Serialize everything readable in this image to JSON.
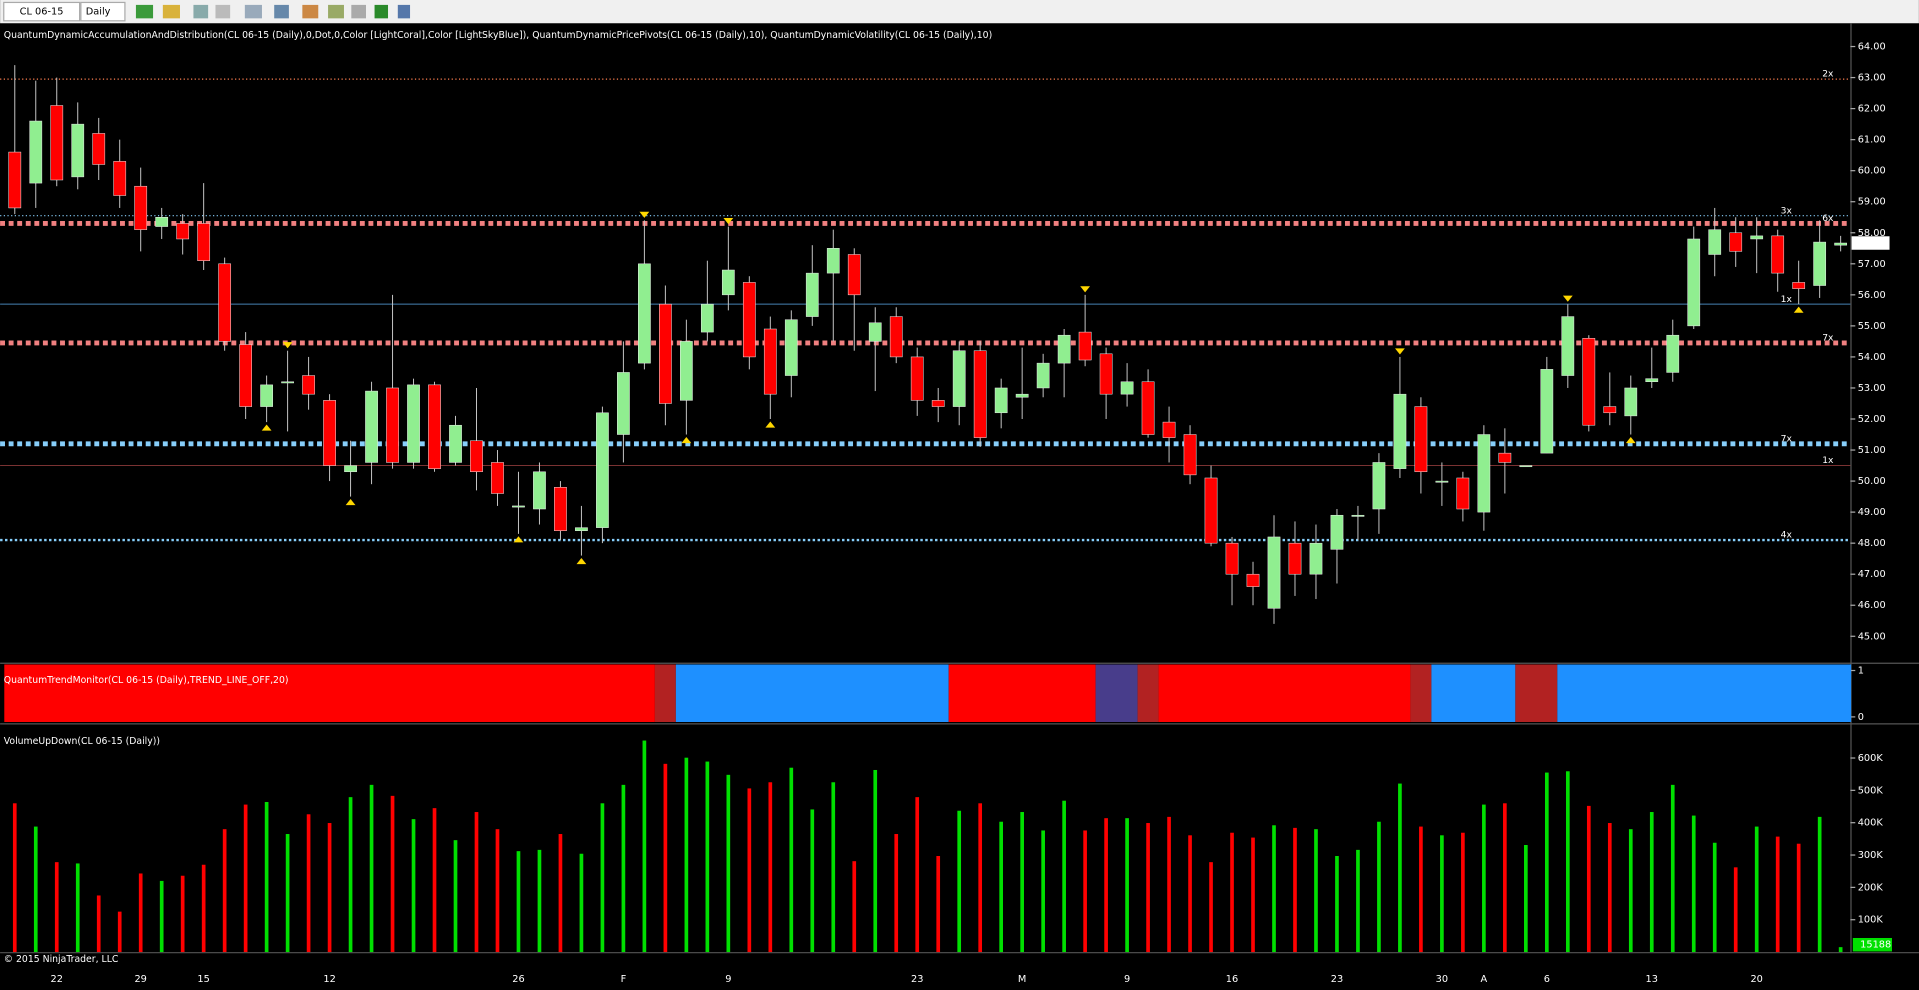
{
  "toolbar": {
    "instrument": "CL 06-15",
    "period": "Daily"
  },
  "copyright": "© 2015 NinjaTrader, LLC",
  "chart_data": [
    {
      "type": "candlestick",
      "title": "QuantumDynamicAccumulationAndDistribution(CL 06-15 (Daily),0,Dot,0,Color [LightCoral],Color [LightSkyBlue]), QuantumDynamicPricePivots(CL 06-15 (Daily),10), QuantumDynamicVolatility(CL 06-15 (Daily),10)",
      "categories": [
        null,
        null,
        "22",
        null,
        null,
        null,
        "29",
        null,
        null,
        "15",
        null,
        null,
        null,
        null,
        null,
        "12",
        null,
        null,
        null,
        null,
        null,
        null,
        null,
        null,
        "26",
        null,
        null,
        null,
        null,
        "F",
        null,
        null,
        null,
        null,
        "9",
        null,
        null,
        null,
        null,
        null,
        null,
        null,
        null,
        "23",
        null,
        null,
        null,
        null,
        "M",
        null,
        null,
        null,
        null,
        "9",
        null,
        null,
        null,
        null,
        "16",
        null,
        null,
        null,
        null,
        "23",
        null,
        null,
        null,
        null,
        "30",
        null,
        "A",
        null,
        null,
        "6",
        null,
        null,
        null,
        null,
        "13",
        null,
        null,
        null,
        null,
        "20",
        null,
        null,
        null,
        null
      ],
      "open": [
        60.6,
        59.6,
        62.1,
        59.8,
        61.2,
        60.3,
        59.5,
        58.2,
        58.3,
        58.3,
        57.0,
        54.4,
        52.4,
        53.2,
        53.4,
        52.6,
        50.3,
        50.6,
        53,
        50.6,
        53.1,
        50.6,
        51.3,
        50.6,
        49.2,
        49.1,
        49.8,
        48.4,
        48.5,
        51.5,
        53.8,
        55.7,
        52.6,
        54.8,
        56,
        56.4,
        54.9,
        53.4,
        55.3,
        56.7,
        57.3,
        54.5,
        55.3,
        54,
        52.6,
        52.4,
        54.2,
        52.2,
        52.7,
        53,
        53.8,
        54.8,
        54.1,
        52.8,
        53.2,
        51.9,
        51.5,
        50.1,
        48,
        47,
        45.9,
        48,
        47,
        47.8,
        48.9,
        49.1,
        50.4,
        52.4,
        50,
        50.1,
        49,
        50.9,
        50.5,
        50.9,
        53.4,
        54.6,
        52.4,
        52.1,
        53.2,
        53.5,
        55,
        57.3,
        58,
        57.8,
        57.9,
        56.4,
        56.3,
        57.6
      ],
      "high": [
        63.4,
        62.9,
        63,
        62.2,
        61.7,
        61,
        60.1,
        58.8,
        58.6,
        59.6,
        57.2,
        54.8,
        53.4,
        54.2,
        54,
        52.8,
        51.3,
        53.2,
        56,
        53.3,
        53.2,
        52.1,
        53,
        51,
        50.3,
        50.6,
        50,
        49.2,
        52.4,
        54.5,
        58.4,
        56.3,
        55.2,
        57.1,
        58.2,
        56.6,
        55.3,
        55.5,
        57.6,
        58.1,
        57.5,
        55.6,
        55.6,
        54.3,
        53,
        54.5,
        54.5,
        53.3,
        54.3,
        54.1,
        54.9,
        56,
        54.3,
        53.8,
        53.6,
        52.4,
        51.8,
        50.5,
        48.2,
        47.4,
        48.9,
        48.7,
        48.6,
        49.1,
        49.2,
        50.9,
        54,
        52.7,
        50.6,
        50.3,
        51.8,
        51.7,
        50.5,
        54,
        55.7,
        54.7,
        53.5,
        53.4,
        54.3,
        55.2,
        58.2,
        58.8,
        58.5,
        58.5,
        58.1,
        57.1,
        58.4,
        57.9
      ],
      "low": [
        58.6,
        58.8,
        59.5,
        59.4,
        59.7,
        58.8,
        57.4,
        57.8,
        57.3,
        56.8,
        54.2,
        52,
        51.9,
        51.6,
        52.3,
        50,
        49.5,
        49.9,
        50.4,
        50.4,
        50.3,
        50.5,
        49.7,
        49.2,
        48.3,
        48.6,
        48.1,
        47.6,
        48,
        50.6,
        53.6,
        51.8,
        51.5,
        54.5,
        55.5,
        53.6,
        52,
        52.7,
        55,
        54.5,
        54.2,
        52.9,
        53.8,
        52.1,
        51.9,
        51.8,
        51.1,
        51.7,
        52,
        52.7,
        52.7,
        53.7,
        52,
        52.4,
        51.4,
        50.6,
        49.9,
        47.9,
        46,
        46,
        45.4,
        46.3,
        46.2,
        46.7,
        48.1,
        48.3,
        50.1,
        49.6,
        49.2,
        48.7,
        48.4,
        49.6,
        50.5,
        50.9,
        53,
        51.6,
        51.8,
        51.5,
        53,
        53.2,
        54.9,
        56.6,
        56.9,
        56.7,
        56.1,
        55.7,
        55.9,
        57.4
      ],
      "close": [
        58.8,
        61.6,
        59.7,
        61.5,
        60.2,
        59.2,
        58.1,
        58.5,
        57.8,
        57.1,
        54.5,
        52.4,
        53.1,
        53.2,
        52.8,
        50.5,
        50.5,
        52.9,
        50.6,
        53.1,
        50.4,
        51.8,
        50.3,
        49.6,
        49.2,
        50.3,
        48.4,
        48.5,
        52.2,
        53.5,
        57.0,
        52.5,
        54.5,
        55.7,
        56.8,
        54,
        52.8,
        55.2,
        56.7,
        57.5,
        56.0,
        55.1,
        54,
        52.6,
        52.4,
        54.2,
        51.4,
        53,
        52.8,
        53.8,
        54.7,
        53.9,
        52.8,
        53.2,
        51.5,
        51.4,
        50.2,
        48.0,
        47,
        46.6,
        48.2,
        47,
        48,
        48.9,
        48.9,
        50.6,
        52.8,
        50.3,
        50,
        49.1,
        51.5,
        50.6,
        50.5,
        53.6,
        55.3,
        51.8,
        52.2,
        53,
        53.3,
        54.7,
        57.8,
        58.1,
        57.4,
        57.9,
        56.7,
        56.2,
        57.7,
        57.67
      ],
      "up_color": "#90ee90",
      "down_color": "#ff0000",
      "wick_color": "#c8c8c8",
      "ylim": [
        44.17,
        64.75
      ],
      "yticks": [
        {
          "value": 45,
          "label": "45.00"
        },
        {
          "value": 46,
          "label": "46.00"
        },
        {
          "value": 47,
          "label": "47.00"
        },
        {
          "value": 48,
          "label": "48.00"
        },
        {
          "value": 49,
          "label": "49.00"
        },
        {
          "value": 50,
          "label": "50.00"
        },
        {
          "value": 51,
          "label": "51.00"
        },
        {
          "value": 52,
          "label": "52.00"
        },
        {
          "value": 53,
          "label": "53.00"
        },
        {
          "value": 54,
          "label": "54.00"
        },
        {
          "value": 55,
          "label": "55.00"
        },
        {
          "value": 56,
          "label": "56.00"
        },
        {
          "value": 57,
          "label": "57.00"
        },
        {
          "value": 58,
          "label": "58.00"
        },
        {
          "value": 59,
          "label": "59.00"
        },
        {
          "value": 60,
          "label": "60.00"
        },
        {
          "value": 61,
          "label": "61.00"
        },
        {
          "value": 62,
          "label": "62.00"
        },
        {
          "value": 63,
          "label": "63.00"
        },
        {
          "value": 64,
          "label": "64.00"
        }
      ],
      "levels": [
        {
          "value": 62.95,
          "label": "2x",
          "color": "#ff7f50",
          "style": "dotted",
          "side": "outer"
        },
        {
          "value": 58.55,
          "label": "3x",
          "color": "#87cefa",
          "style": "dotted",
          "side": "inner"
        },
        {
          "value": 58.3,
          "label": "6x",
          "color": "#f08080",
          "style": "heavy",
          "side": "outer"
        },
        {
          "value": 55.7,
          "label": "1x",
          "color": "#4682b4",
          "style": "solid",
          "side": "inner"
        },
        {
          "value": 54.45,
          "label": "7x",
          "color": "#f08080",
          "style": "heavy",
          "side": "outer"
        },
        {
          "value": 51.2,
          "label": "7x",
          "color": "#87cefa",
          "style": "heavy",
          "side": "inner"
        },
        {
          "value": 50.5,
          "label": "1x",
          "color": "#8b3a3a",
          "style": "solid",
          "side": "outer"
        },
        {
          "value": 48.1,
          "label": "4x",
          "color": "#87cefa",
          "style": "dotted-heavy",
          "side": "inner"
        }
      ],
      "pivots": [
        [
          12,
          "low"
        ],
        [
          13,
          "high"
        ],
        [
          16,
          "low"
        ],
        [
          24,
          "low"
        ],
        [
          27,
          "low"
        ],
        [
          30,
          "high"
        ],
        [
          32,
          "low"
        ],
        [
          34,
          "high"
        ],
        [
          36,
          "low"
        ],
        [
          51,
          "high"
        ],
        [
          66,
          "high"
        ],
        [
          74,
          "high"
        ],
        [
          77,
          "low"
        ],
        [
          85,
          "low"
        ]
      ],
      "pivot_color": "#ffd700"
    },
    {
      "type": "bands",
      "title": "QuantumTrendMonitor(CL 06-15 (Daily),TREND_LINE_OFF,20)",
      "bands": [
        {
          "from": 0,
          "to": 30,
          "color": "#ff0000"
        },
        {
          "from": 31,
          "to": 31,
          "color": "#b22222"
        },
        {
          "from": 32,
          "to": 44,
          "color": "#1e90ff"
        },
        {
          "from": 45,
          "to": 51,
          "color": "#ff0000"
        },
        {
          "from": 52,
          "to": 53,
          "color": "#483d8b"
        },
        {
          "from": 54,
          "to": 54,
          "color": "#b22222"
        },
        {
          "from": 55,
          "to": 66,
          "color": "#ff0000"
        },
        {
          "from": 67,
          "to": 67,
          "color": "#b22222"
        },
        {
          "from": 68,
          "to": 71,
          "color": "#1e90ff"
        },
        {
          "from": 72,
          "to": 73,
          "color": "#b22222"
        },
        {
          "from": 74,
          "to": 87,
          "color": "#1e90ff"
        }
      ],
      "ylim": [
        -0.11,
        1.13
      ],
      "yticks": [
        0,
        1
      ]
    },
    {
      "type": "bar",
      "title": "VolumeUpDown(CL 06-15 (Daily))",
      "values": [
        460000,
        388000,
        278000,
        274000,
        175000,
        125000,
        243000,
        220000,
        236000,
        270000,
        380000,
        456000,
        464000,
        365000,
        426000,
        399000,
        479000,
        517000,
        483000,
        411000,
        445000,
        346000,
        433000,
        380000,
        312000,
        316000,
        365000,
        304000,
        460000,
        517000,
        654000,
        582000,
        601000,
        589000,
        548000,
        506000,
        525000,
        570000,
        441000,
        525000,
        281000,
        563000,
        365000,
        479000,
        297000,
        437000,
        460000,
        403000,
        433000,
        376000,
        468000,
        376000,
        414000,
        414000,
        399000,
        418000,
        361000,
        278000,
        369000,
        354000,
        392000,
        384000,
        380000,
        297000,
        316000,
        403000,
        521000,
        388000,
        361000,
        369000,
        456000,
        460000,
        331000,
        555000,
        559000,
        452000,
        399000,
        380000,
        433000,
        517000,
        422000,
        338000,
        262000,
        388000,
        357000,
        335000,
        418000,
        15188
      ],
      "up_color": "#00e000",
      "down_color": "#ff0000",
      "ylim": [
        0,
        700000
      ],
      "yticks": [
        {
          "value": 100000,
          "label": "100K"
        },
        {
          "value": 200000,
          "label": "200K"
        },
        {
          "value": 300000,
          "label": "300K"
        },
        {
          "value": 400000,
          "label": "400K"
        },
        {
          "value": 500000,
          "label": "500K"
        },
        {
          "value": 600000,
          "label": "600K"
        }
      ]
    }
  ]
}
